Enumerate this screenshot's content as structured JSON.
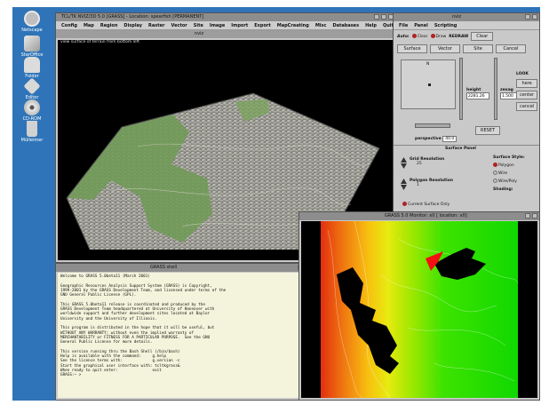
{
  "desktop": {
    "icons": [
      {
        "label": "Netscape",
        "name": "netscape-icon",
        "color": "#cfcfcf"
      },
      {
        "label": "StarOffice",
        "name": "staroffice-icon",
        "color": "#e0e0e0"
      },
      {
        "label": "Folder",
        "name": "folder-icon",
        "color": "#d9d9d9"
      },
      {
        "label": "Editor",
        "name": "editor-icon",
        "color": "#dcdcdc"
      },
      {
        "label": "CD-ROM",
        "name": "cdrom-icon",
        "color": "#e6e6e6"
      },
      {
        "label": "Mülleimer",
        "name": "trash-icon",
        "color": "#d0d0d0"
      }
    ]
  },
  "nviz_window": {
    "title": "TCL/TK NVIZ/3D 5.0 [GRASS] - Location: spearfish [PERMANENT]",
    "menu": [
      "Config",
      "Map",
      "Region",
      "Display",
      "Raster",
      "Vector",
      "Site",
      "Image",
      "Import",
      "Export",
      "MapCreating",
      "Misc",
      "Databases",
      "Help",
      "Quit"
    ],
    "view_title": "nviz",
    "view_caption": "view surface of terrain from bottom left"
  },
  "control_panel": {
    "title": "nviz",
    "menu": [
      "File",
      "Panel",
      "Scripting"
    ],
    "auto_label": "Auto:",
    "clear_radio": "Clear",
    "draw_radio": "Draw",
    "redraw": "REDRAW",
    "clear_button": "Clear",
    "tabs": [
      "Surface",
      "Vector",
      "Site",
      "Cancel"
    ],
    "height_label": "height",
    "height_value": "2281.26",
    "zexag_label": "zexag",
    "zexag_value": "1.500",
    "look_label": "LOOK",
    "look_buttons": [
      "here",
      "center",
      "cancel"
    ],
    "reset": "RESET",
    "perspective_label": "perspective",
    "perspective_value": "40.0",
    "north_label": "N",
    "surface_panel_title": "Surface Panel",
    "grid_label": "Grid Resolution",
    "grid_value": "25",
    "polygon_label": "Polygon Resolution",
    "polygon_value": "1",
    "current_only": "Current Surface Only",
    "style_title": "Surface Style:",
    "style_options": [
      "Polygon",
      "Wire",
      "Wire/Poly"
    ],
    "shading_label": "Shading:"
  },
  "terminal": {
    "title": "GRASS shell",
    "lines": [
      "Welcome to GRASS 5.0beta11 (March 2001)",
      "",
      "Geographic Resources Analysis Support System (GRASS) is Copyright,",
      "1999-2001 by the GRASS Development Team, and licensed under terms of the",
      "GNU General Public License (GPL).",
      "",
      "This GRASS 5.0beta11 release is coordinated and produced by the",
      "GRASS Development Team headquartered at University of Hannover with",
      "worldwide support and further development sites located at Baylor",
      "University and the University of Illinois.",
      "",
      "This program is distributed in the hope that it will be useful, but",
      "WITHOUT ANY WARRANTY; without even the implied warranty of",
      "MERCHANTABILITY or FITNESS FOR A PARTICULAR PURPOSE.  See the GNU",
      "General Public License for more details.",
      "",
      "This version running thru the Bash Shell (/bin/bash)",
      "Help is available with the command:     g.help",
      "See the licence terms with:             g.version -c",
      "Start the graphical user interface with: tcltkgrass&",
      "When ready to quit enter:               exit",
      "GRASS:~ >"
    ]
  },
  "map_window": {
    "title": "GRASS 5.0 Monitor: x0   [ location: x0]"
  }
}
